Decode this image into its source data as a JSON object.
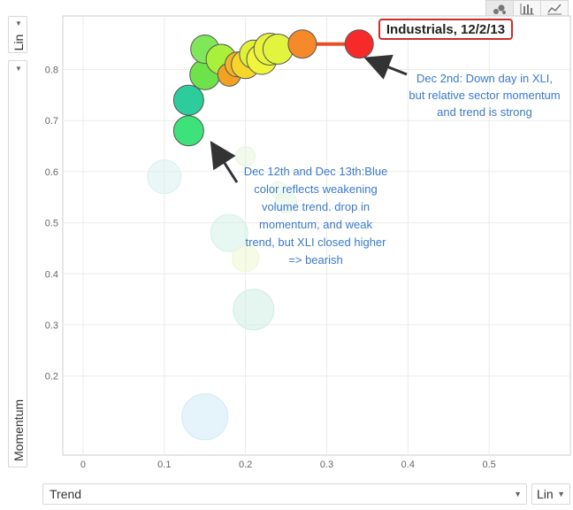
{
  "controls": {
    "y_scale": "Lin",
    "y_axis_metric": "Momentum",
    "x_axis_metric": "Trend",
    "x_scale": "Lin",
    "chart_types": [
      {
        "icon": "bubble-chart-icon",
        "active": true
      },
      {
        "icon": "bar-chart-icon",
        "active": false
      },
      {
        "icon": "line-chart-icon",
        "active": false
      }
    ]
  },
  "chart_data": {
    "type": "scatter",
    "xlabel": "Trend",
    "ylabel": "Momentum",
    "xlim": [
      -0.025,
      0.6
    ],
    "ylim": [
      0.045,
      0.905
    ],
    "x_ticks": [
      0,
      0.1,
      0.2,
      0.3,
      0.4,
      0.5
    ],
    "x_tick_labels": [
      "0",
      "0.1",
      "0.2",
      "0.3",
      "0.4",
      "0.5"
    ],
    "y_ticks": [
      0.2,
      0.3,
      0.4,
      0.5,
      0.6,
      0.7,
      0.8
    ],
    "y_tick_labels": [
      "0.2",
      "0.3",
      "0.4",
      "0.5",
      "0.6",
      "0.7",
      "0.8"
    ],
    "grid": true,
    "selected_label": "Industrials, 12/2/13",
    "trail_color": "#e8502a",
    "faded_points": [
      {
        "x": 0.15,
        "y": 0.12,
        "color": "#cfeaf6"
      },
      {
        "x": 0.21,
        "y": 0.33,
        "color": "#cdeee2"
      },
      {
        "x": 0.18,
        "y": 0.48,
        "color": "#d4f1e7"
      },
      {
        "x": 0.2,
        "y": 0.43,
        "color": "#eef7cf"
      },
      {
        "x": 0.1,
        "y": 0.59,
        "color": "#d8f0ee"
      },
      {
        "x": 0.25,
        "y": 0.54,
        "color": "#e2f4e4"
      },
      {
        "x": 0.24,
        "y": 0.565,
        "color": "#e8f6e2"
      },
      {
        "x": 0.2,
        "y": 0.63,
        "color": "#e6f6dc"
      }
    ],
    "points": [
      {
        "x": 0.13,
        "y": 0.68,
        "color": "#3ee27a"
      },
      {
        "x": 0.13,
        "y": 0.74,
        "color": "#2ccc9c"
      },
      {
        "x": 0.15,
        "y": 0.79,
        "color": "#6ee24a"
      },
      {
        "x": 0.15,
        "y": 0.84,
        "color": "#7ee85a"
      },
      {
        "x": 0.17,
        "y": 0.82,
        "color": "#a8f03c"
      },
      {
        "x": 0.18,
        "y": 0.79,
        "color": "#f2a222"
      },
      {
        "x": 0.19,
        "y": 0.81,
        "color": "#f4b428"
      },
      {
        "x": 0.2,
        "y": 0.81,
        "color": "#f6d62a"
      },
      {
        "x": 0.21,
        "y": 0.83,
        "color": "#dff036"
      },
      {
        "x": 0.22,
        "y": 0.82,
        "color": "#eef53a"
      },
      {
        "x": 0.23,
        "y": 0.84,
        "color": "#e9f33c"
      },
      {
        "x": 0.24,
        "y": 0.84,
        "color": "#e3f43e"
      },
      {
        "x": 0.27,
        "y": 0.85,
        "color": "#f68a2a"
      },
      {
        "x": 0.34,
        "y": 0.85,
        "color": "#f72a2a"
      }
    ],
    "annotations": [
      {
        "lines": [
          "Dec 2nd: Down day in XLI,",
          "but relative sector momentum",
          "and trend is strong"
        ],
        "color": "#3a7ac8"
      },
      {
        "lines": [
          "Dec 12th and Dec 13th:Blue",
          "color reflects weakening",
          "volume trend. drop in",
          "momentum, and weak",
          "trend, but XLI closed higher",
          "=> bearish"
        ],
        "color": "#3a7ac8"
      }
    ]
  }
}
